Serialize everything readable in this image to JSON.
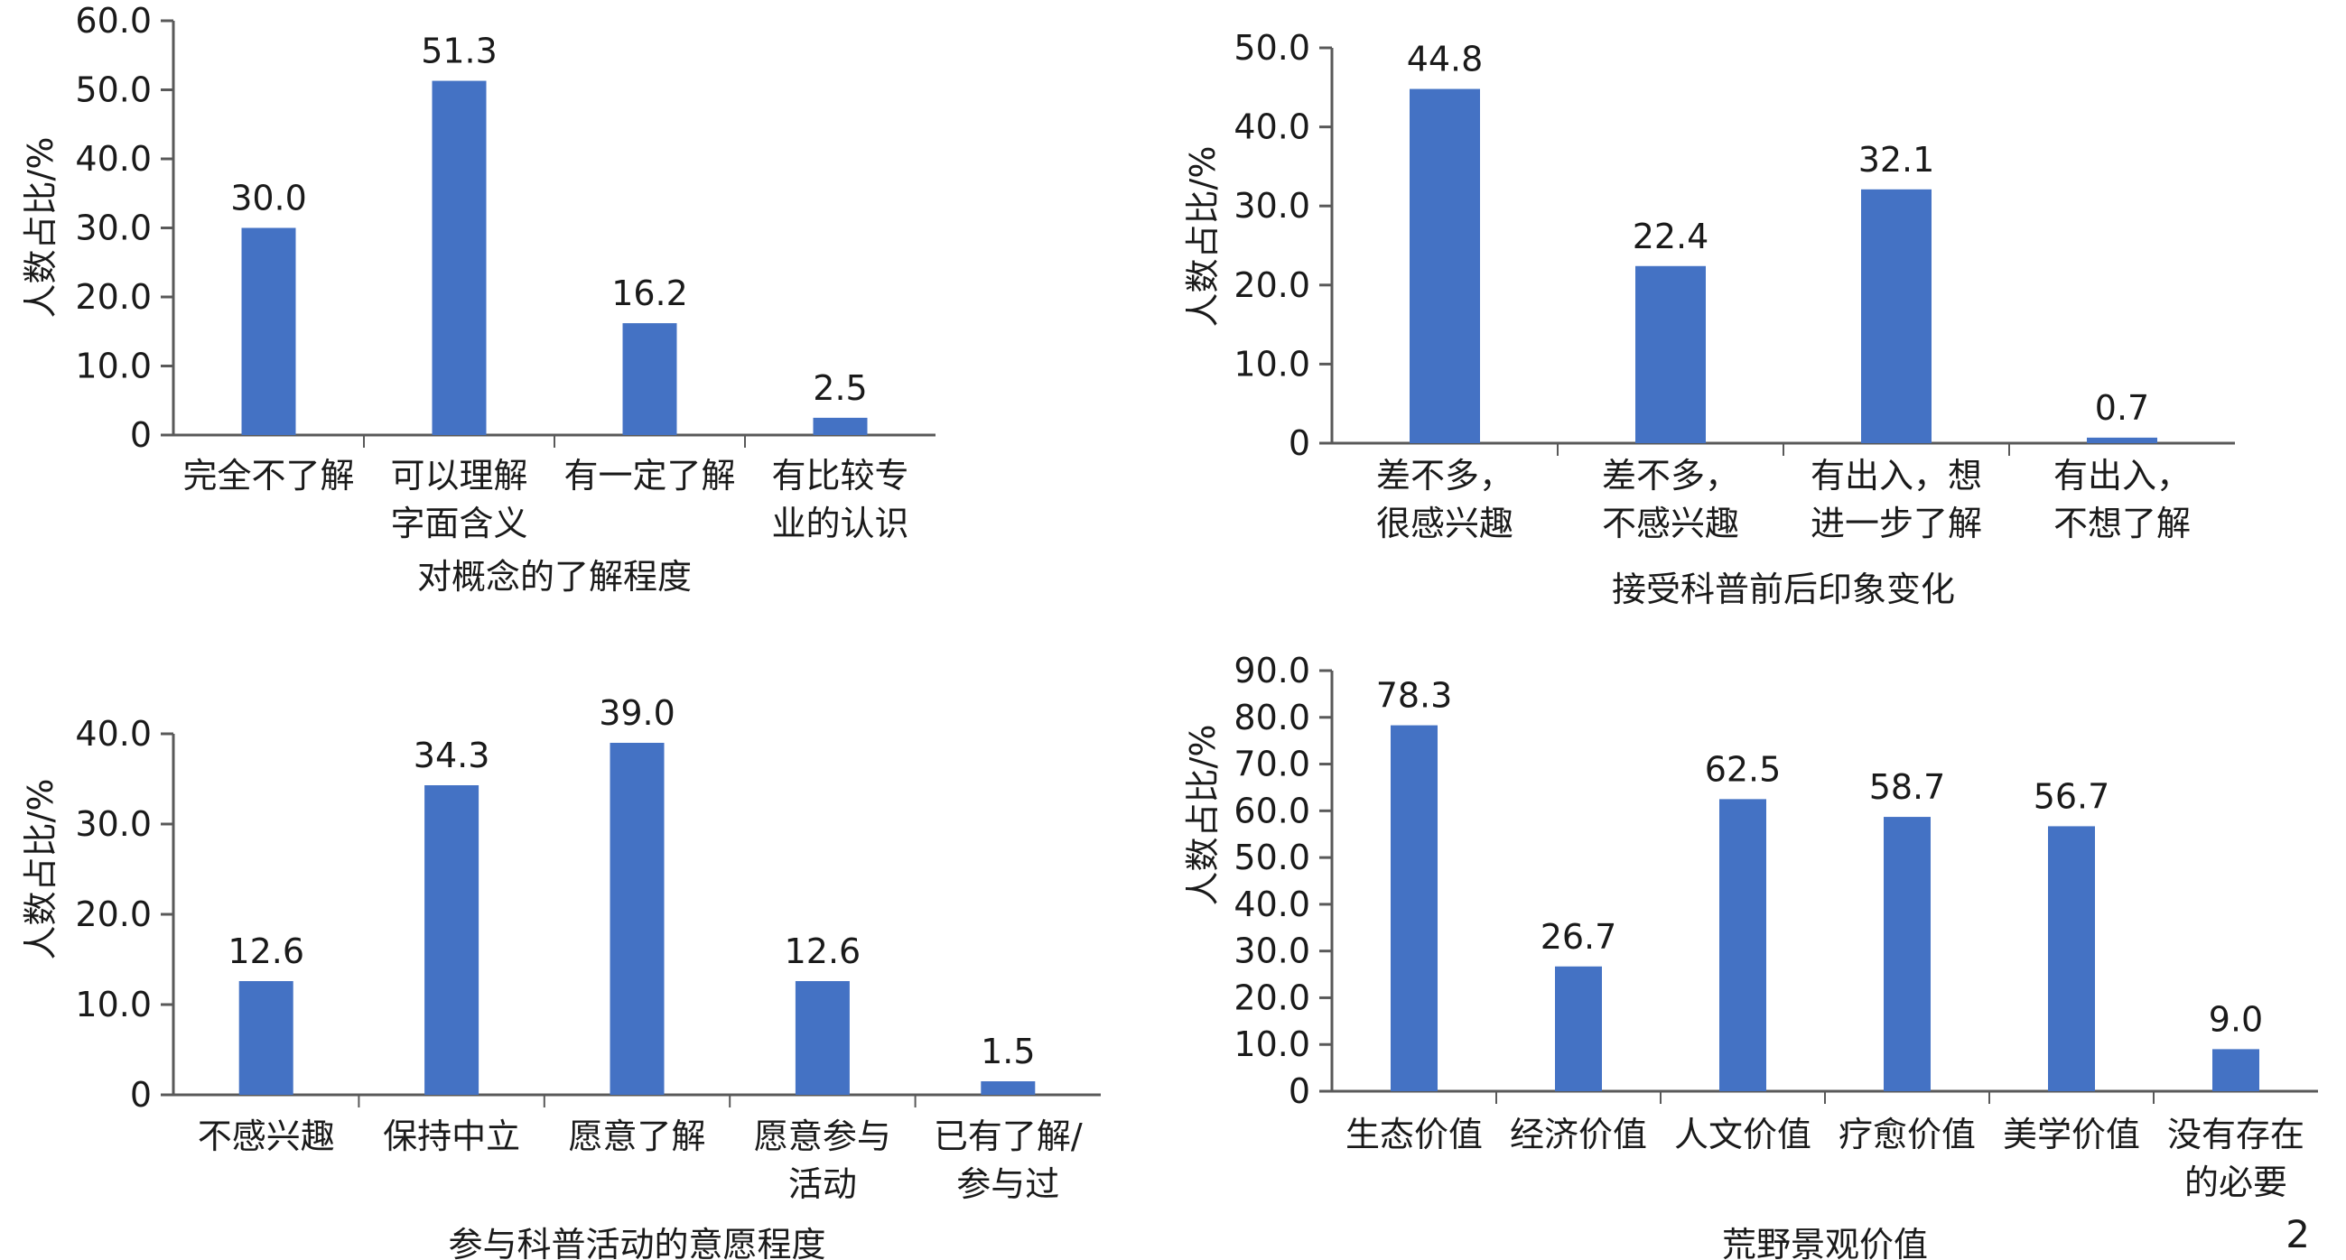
{
  "page_number": "2",
  "colors": {
    "bar": "#4472C4",
    "axis": "#595959",
    "text": "#1a1a1a"
  },
  "chart_data": [
    {
      "type": "bar",
      "categories": [
        [
          "完全不了解"
        ],
        [
          "可以理解",
          "字面含义"
        ],
        [
          "有一定了解"
        ],
        [
          "有比较专",
          "业的认识"
        ]
      ],
      "values": [
        30.0,
        51.3,
        16.2,
        2.5
      ],
      "value_labels": [
        "30.0",
        "51.3",
        "16.2",
        "2.5"
      ],
      "ylabel": "人数占比/%",
      "xlabel": "对概念的了解程度",
      "yticks": [
        "0",
        "10.0",
        "20.0",
        "30.0",
        "40.0",
        "50.0",
        "60.0"
      ],
      "ylim": [
        0,
        60
      ]
    },
    {
      "type": "bar",
      "categories": [
        [
          "差不多，",
          "很感兴趣"
        ],
        [
          "差不多，",
          "不感兴趣"
        ],
        [
          "有出入，想",
          "进一步了解"
        ],
        [
          "有出入，",
          "不想了解"
        ]
      ],
      "values": [
        44.8,
        22.4,
        32.1,
        0.7
      ],
      "value_labels": [
        "44.8",
        "22.4",
        "32.1",
        "0.7"
      ],
      "ylabel": "人数占比/%",
      "xlabel": "接受科普前后印象变化",
      "yticks": [
        "0",
        "10.0",
        "20.0",
        "30.0",
        "40.0",
        "50.0"
      ],
      "ylim": [
        0,
        50
      ]
    },
    {
      "type": "bar",
      "categories": [
        [
          "不感兴趣"
        ],
        [
          "保持中立"
        ],
        [
          "愿意了解"
        ],
        [
          "愿意参与",
          "活动"
        ],
        [
          "已有了解/",
          "参与过"
        ]
      ],
      "values": [
        12.6,
        34.3,
        39.0,
        12.6,
        1.5
      ],
      "value_labels": [
        "12.6",
        "34.3",
        "39.0",
        "12.6",
        "1.5"
      ],
      "ylabel": "人数占比/%",
      "xlabel": "参与科普活动的意愿程度",
      "yticks": [
        "0",
        "10.0",
        "20.0",
        "30.0",
        "40.0"
      ],
      "ylim": [
        0,
        40
      ]
    },
    {
      "type": "bar",
      "categories": [
        [
          "生态价值"
        ],
        [
          "经济价值"
        ],
        [
          "人文价值"
        ],
        [
          "疗愈价值"
        ],
        [
          "美学价值"
        ],
        [
          "没有存在",
          "的必要"
        ]
      ],
      "values": [
        78.3,
        26.7,
        62.5,
        58.7,
        56.7,
        9.0
      ],
      "value_labels": [
        "78.3",
        "26.7",
        "62.5",
        "58.7",
        "56.7",
        "9.0"
      ],
      "ylabel": "人数占比/%",
      "xlabel": "荒野景观价值",
      "yticks": [
        "0",
        "10.0",
        "20.0",
        "30.0",
        "40.0",
        "50.0",
        "60.0",
        "70.0",
        "80.0",
        "90.0"
      ],
      "ylim": [
        0,
        90
      ]
    }
  ]
}
